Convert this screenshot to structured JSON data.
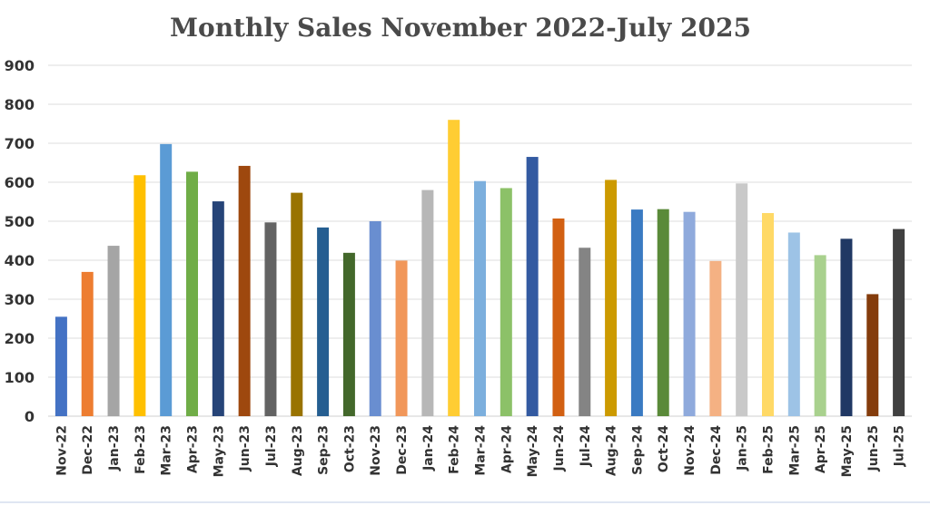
{
  "chart_data": {
    "type": "bar",
    "title": "Monthly Sales November 2022-July 2025",
    "xlabel": "",
    "ylabel": "",
    "ylim": [
      0,
      900
    ],
    "yticks": [
      0,
      100,
      200,
      300,
      400,
      500,
      600,
      700,
      800,
      900
    ],
    "grid": true,
    "legend": "none",
    "categories": [
      "Nov-22",
      "Dec-22",
      "Jan-23",
      "Feb-23",
      "Mar-23",
      "Apr-23",
      "May-23",
      "Jun-23",
      "Jul-23",
      "Aug-23",
      "Sep-23",
      "Oct-23",
      "Nov-23",
      "Dec-23",
      "Jan-24",
      "Feb-24",
      "Mar-24",
      "Apr-24",
      "May-24",
      "Jun-24",
      "Jul-24",
      "Aug-24",
      "Sep-24",
      "Oct-24",
      "Nov-24",
      "Dec-24",
      "Jan-25",
      "Feb-25",
      "Mar-25",
      "Apr-25",
      "May-25",
      "Jun-25",
      "Jul-25"
    ],
    "values": [
      255,
      370,
      437,
      618,
      698,
      627,
      551,
      642,
      497,
      573,
      484,
      419,
      500,
      399,
      580,
      760,
      603,
      585,
      665,
      507,
      432,
      606,
      530,
      531,
      524,
      398,
      597,
      521,
      471,
      413,
      455,
      313,
      480
    ],
    "colors": [
      "#4472c4",
      "#ed7d31",
      "#a5a5a5",
      "#ffc000",
      "#5b9bd5",
      "#70ad47",
      "#264478",
      "#9e480e",
      "#636363",
      "#997300",
      "#255e91",
      "#43682b",
      "#698ed0",
      "#f1975a",
      "#b7b7b7",
      "#ffcd33",
      "#7cafdd",
      "#8cc168",
      "#335aa1",
      "#d26012",
      "#848484",
      "#cc9a00",
      "#3a7ac2",
      "#5a8a39",
      "#8faadc",
      "#f4b183",
      "#c9c9c9",
      "#ffd966",
      "#9dc3e6",
      "#a9d18e",
      "#203864",
      "#843c0c",
      "#404040"
    ]
  }
}
